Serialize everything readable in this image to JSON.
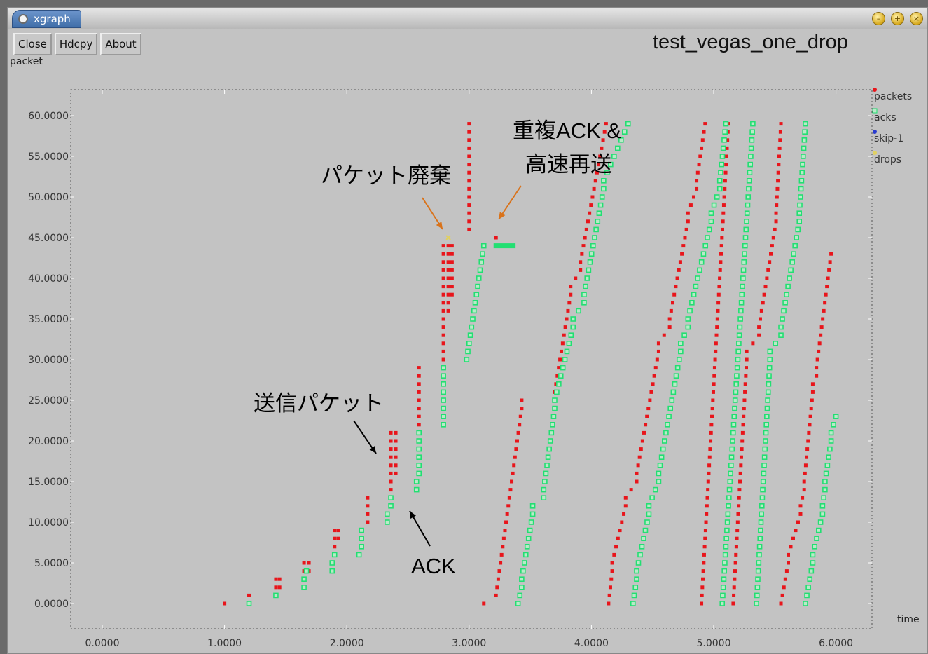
{
  "window": {
    "title": "xgraph",
    "buttons": {
      "close": "Close",
      "hdcpy": "Hdcpy",
      "about": "About"
    }
  },
  "chart_data": {
    "type": "scatter",
    "title": "test_vegas_one_drop",
    "xlabel": "time",
    "ylabel": "packet",
    "xlim": [
      0,
      6.3
    ],
    "ylim": [
      -2,
      63
    ],
    "x_ticks": [
      "0.0000",
      "1.0000",
      "2.0000",
      "3.0000",
      "4.0000",
      "5.0000",
      "6.0000"
    ],
    "y_ticks": [
      "0.0000",
      "5.0000",
      "10.0000",
      "15.0000",
      "20.0000",
      "25.0000",
      "30.0000",
      "35.0000",
      "40.0000",
      "45.0000",
      "50.0000",
      "55.0000",
      "60.0000"
    ],
    "legend_position": "right",
    "series": [
      {
        "name": "packets",
        "color": "#e8151b",
        "marker": "dot",
        "points": [
          [
            1.0,
            0
          ],
          [
            1.2,
            1
          ],
          [
            1.42,
            2
          ],
          [
            1.42,
            3
          ],
          [
            1.45,
            2
          ],
          [
            1.45,
            3
          ],
          [
            1.65,
            4
          ],
          [
            1.65,
            5
          ],
          [
            1.69,
            4
          ],
          [
            1.69,
            5
          ],
          [
            1.9,
            6
          ],
          [
            1.9,
            7
          ],
          [
            1.9,
            8
          ],
          [
            1.9,
            9
          ],
          [
            1.93,
            8
          ],
          [
            1.93,
            9
          ],
          [
            2.17,
            10
          ],
          [
            2.17,
            11
          ],
          [
            2.17,
            12
          ],
          [
            2.17,
            13
          ],
          [
            2.36,
            14
          ],
          [
            2.36,
            15
          ],
          [
            2.36,
            16
          ],
          [
            2.36,
            17
          ],
          [
            2.36,
            18
          ],
          [
            2.36,
            19
          ],
          [
            2.36,
            20
          ],
          [
            2.36,
            21
          ],
          [
            2.4,
            16
          ],
          [
            2.4,
            17
          ],
          [
            2.4,
            18
          ],
          [
            2.4,
            19
          ],
          [
            2.4,
            20
          ],
          [
            2.4,
            21
          ],
          [
            2.59,
            22
          ],
          [
            2.59,
            23
          ],
          [
            2.59,
            24
          ],
          [
            2.59,
            25
          ],
          [
            2.59,
            26
          ],
          [
            2.59,
            27
          ],
          [
            2.59,
            28
          ],
          [
            2.59,
            29
          ],
          [
            2.79,
            30
          ],
          [
            2.79,
            31
          ],
          [
            2.79,
            32
          ],
          [
            2.79,
            33
          ],
          [
            2.79,
            34
          ],
          [
            2.79,
            35
          ],
          [
            2.79,
            36
          ],
          [
            2.79,
            37
          ],
          [
            2.79,
            38
          ],
          [
            2.79,
            39
          ],
          [
            2.79,
            40
          ],
          [
            2.79,
            41
          ],
          [
            2.79,
            42
          ],
          [
            2.79,
            43
          ],
          [
            2.79,
            44
          ],
          [
            2.83,
            36
          ],
          [
            2.83,
            37
          ],
          [
            2.83,
            38
          ],
          [
            2.83,
            39
          ],
          [
            2.83,
            40
          ],
          [
            2.83,
            41
          ],
          [
            2.83,
            42
          ],
          [
            2.83,
            43
          ],
          [
            2.83,
            44
          ],
          [
            2.86,
            38
          ],
          [
            2.86,
            39
          ],
          [
            2.86,
            40
          ],
          [
            2.86,
            41
          ],
          [
            2.86,
            42
          ],
          [
            2.86,
            43
          ],
          [
            2.86,
            44
          ],
          [
            3.0,
            46
          ],
          [
            3.0,
            47
          ],
          [
            3.0,
            48
          ],
          [
            3.0,
            49
          ],
          [
            3.0,
            50
          ],
          [
            3.0,
            51
          ],
          [
            3.0,
            52
          ],
          [
            3.0,
            53
          ],
          [
            3.0,
            54
          ],
          [
            3.0,
            55
          ],
          [
            3.0,
            56
          ],
          [
            3.0,
            57
          ],
          [
            3.0,
            58
          ],
          [
            3.0,
            59
          ],
          [
            3.22,
            45
          ],
          [
            3.12,
            0
          ]
        ],
        "segments": [
          [
            3.22,
            1,
            3.43,
            24
          ],
          [
            3.43,
            25,
            3.7,
            25
          ],
          [
            3.7,
            26,
            3.83,
            38
          ],
          [
            3.83,
            39,
            3.91,
            41
          ],
          [
            3.91,
            42,
            4.12,
            59
          ],
          [
            4.14,
            0,
            4.17,
            4
          ],
          [
            4.17,
            5,
            4.28,
            12
          ],
          [
            4.28,
            13,
            4.37,
            15
          ],
          [
            4.37,
            16,
            4.55,
            31
          ],
          [
            4.55,
            32,
            4.64,
            34
          ],
          [
            4.64,
            35,
            4.79,
            47
          ],
          [
            4.79,
            48,
            4.86,
            51
          ],
          [
            4.86,
            52,
            4.93,
            59
          ],
          [
            4.9,
            0,
            5.12,
            59
          ],
          [
            5.16,
            0,
            5.27,
            30
          ],
          [
            5.27,
            31,
            5.37,
            33
          ],
          [
            5.37,
            34,
            5.51,
            47
          ],
          [
            5.51,
            48,
            5.55,
            59
          ],
          [
            5.55,
            0,
            5.61,
            5
          ],
          [
            5.61,
            6,
            5.71,
            11
          ],
          [
            5.71,
            12,
            5.74,
            14
          ],
          [
            5.74,
            15,
            5.81,
            26
          ],
          [
            5.81,
            27,
            5.84,
            28
          ],
          [
            5.84,
            29,
            5.96,
            43
          ]
        ]
      },
      {
        "name": "acks",
        "color": "#22df72",
        "marker": "hollow-square",
        "points": [
          [
            1.2,
            0
          ],
          [
            1.42,
            1
          ],
          [
            1.65,
            2
          ],
          [
            1.65,
            3
          ],
          [
            1.67,
            4
          ],
          [
            1.88,
            4
          ],
          [
            1.88,
            5
          ],
          [
            1.9,
            6
          ],
          [
            2.1,
            6
          ],
          [
            2.12,
            7
          ],
          [
            2.12,
            8
          ],
          [
            2.12,
            9
          ],
          [
            2.33,
            10
          ],
          [
            2.33,
            11
          ],
          [
            2.36,
            12
          ],
          [
            2.36,
            13
          ],
          [
            2.57,
            14
          ],
          [
            2.57,
            15
          ],
          [
            2.59,
            16
          ],
          [
            2.59,
            17
          ],
          [
            2.59,
            18
          ],
          [
            2.59,
            19
          ],
          [
            2.59,
            20
          ],
          [
            2.59,
            21
          ],
          [
            2.79,
            22
          ],
          [
            2.79,
            23
          ],
          [
            2.79,
            24
          ],
          [
            2.79,
            25
          ],
          [
            2.79,
            26
          ],
          [
            2.79,
            27
          ],
          [
            2.79,
            28
          ],
          [
            2.79,
            29
          ]
        ],
        "segments": [
          [
            2.98,
            30,
            3.12,
            44
          ],
          [
            3.4,
            0,
            3.43,
            2
          ],
          [
            3.43,
            3,
            3.52,
            11
          ],
          [
            3.52,
            12,
            3.61,
            13
          ],
          [
            3.61,
            14,
            3.7,
            24
          ],
          [
            3.7,
            25,
            3.85,
            34
          ],
          [
            3.85,
            35,
            3.94,
            37
          ],
          [
            3.94,
            38,
            4.1,
            51
          ],
          [
            4.1,
            52,
            4.3,
            59
          ],
          [
            4.34,
            0,
            4.37,
            3
          ],
          [
            4.37,
            4,
            4.47,
            11
          ],
          [
            4.47,
            12,
            4.55,
            15
          ],
          [
            4.55,
            16,
            4.73,
            31
          ],
          [
            4.73,
            32,
            4.79,
            34
          ],
          [
            4.79,
            35,
            4.98,
            47
          ],
          [
            4.98,
            48,
            5.05,
            51
          ],
          [
            5.05,
            52,
            5.1,
            59
          ],
          [
            5.07,
            0,
            5.32,
            59
          ],
          [
            5.35,
            0,
            5.46,
            30
          ],
          [
            5.46,
            31,
            5.55,
            33
          ],
          [
            5.55,
            34,
            5.7,
            47
          ],
          [
            5.7,
            48,
            5.75,
            59
          ],
          [
            5.75,
            0,
            5.81,
            5
          ],
          [
            5.81,
            6,
            5.89,
            11
          ],
          [
            5.89,
            12,
            5.91,
            14
          ],
          [
            5.91,
            15,
            5.96,
            20
          ],
          [
            5.96,
            21,
            6.0,
            23
          ]
        ],
        "run": {
          "y": 44,
          "x_from": 3.2,
          "x_to": 3.38
        }
      },
      {
        "name": "skip-1",
        "color": "#2a3ccf",
        "marker": "dot",
        "points": []
      },
      {
        "name": "drops",
        "color": "#e0d060",
        "marker": "x",
        "points": [
          [
            2.83,
            45
          ]
        ]
      }
    ]
  },
  "annotations": {
    "packet_drop": "パケット廃棄",
    "dup_ack_line1": "重複ACK &",
    "dup_ack_line2": "高速再送",
    "sent_packets": "送信パケット",
    "ack": "ACK"
  }
}
